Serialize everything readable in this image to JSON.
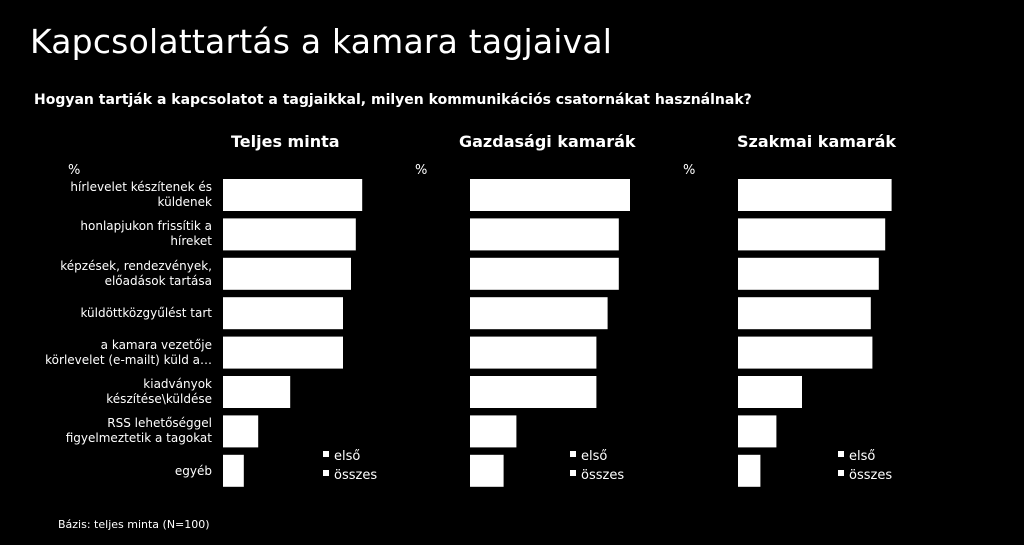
{
  "title": "Kapcsolattartás a kamara tagjaival",
  "subtitle": "Hogyan tartják a kapcsolatot a tagjaikkal, milyen kommunikációs csatornákat használnak?",
  "footnote": "Bázis: teljes minta (N=100)",
  "unit_label": "%",
  "categories": [
    "hírlevelet készítenek és küldenek",
    "honlapjukon frissítik a híreket",
    "képzések, rendezvények, előadások tartása",
    "küldöttközgyűlést tart",
    "a kamara vezetője körlevelet (e-mailt) küld a…",
    "kiadványok készítése\\küldése",
    "RSS lehetőséggel figyelmeztetik a tagokat",
    "egyéb"
  ],
  "legend": [
    "első",
    "összes"
  ],
  "colors": {
    "background": "#000000",
    "bar": "#ffffff",
    "text": "#ffffff"
  },
  "chart_data": [
    {
      "type": "bar",
      "orientation": "horizontal",
      "title": "Teljes minta",
      "categories": [
        "hírlevelet készítenek és küldenek",
        "honlapjukon frissítik a híreket",
        "képzések, rendezvények, előadások tartása",
        "küldöttközgyűlést tart",
        "a kamara vezetője körlevelet (e-mailt) küld a…",
        "kiadványok készítése\\küldése",
        "RSS lehetőséggel figyelmeztetik a tagokat",
        "egyéb"
      ],
      "series": [
        {
          "name": "összes",
          "values": [
            87,
            83,
            80,
            75,
            75,
            42,
            22,
            13
          ]
        }
      ],
      "xlim": [
        0,
        100
      ],
      "legend_position": "bottom-right"
    },
    {
      "type": "bar",
      "orientation": "horizontal",
      "title": "Gazdasági kamarák",
      "categories": [
        "hírlevelet készítenek és küldenek",
        "honlapjukon frissítik a híreket",
        "képzések, rendezvények, előadások tartása",
        "küldöttközgyűlést tart",
        "a kamara vezetője körlevelet (e-mailt) küld a…",
        "kiadványok készítése\\küldése",
        "RSS lehetőséggel figyelmeztetik a tagokat",
        "egyéb"
      ],
      "series": [
        {
          "name": "összes",
          "values": [
            100,
            93,
            93,
            86,
            79,
            79,
            29,
            21
          ]
        }
      ],
      "xlim": [
        0,
        100
      ],
      "legend_position": "bottom-right"
    },
    {
      "type": "bar",
      "orientation": "horizontal",
      "title": "Szakmai kamarák",
      "categories": [
        "hírlevelet készítenek és küldenek",
        "honlapjukon frissítik a híreket",
        "képzések, rendezvények, előadások tartása",
        "küldöttközgyűlést tart",
        "a kamara vezetője körlevelet (e-mailt) küld a…",
        "kiadványok készítése\\küldése",
        "RSS lehetőséggel figyelmeztetik a tagokat",
        "egyéb"
      ],
      "series": [
        {
          "name": "összes",
          "values": [
            96,
            92,
            88,
            83,
            84,
            40,
            24,
            14
          ]
        }
      ],
      "xlim": [
        0,
        100
      ],
      "legend_position": "bottom-right"
    }
  ]
}
